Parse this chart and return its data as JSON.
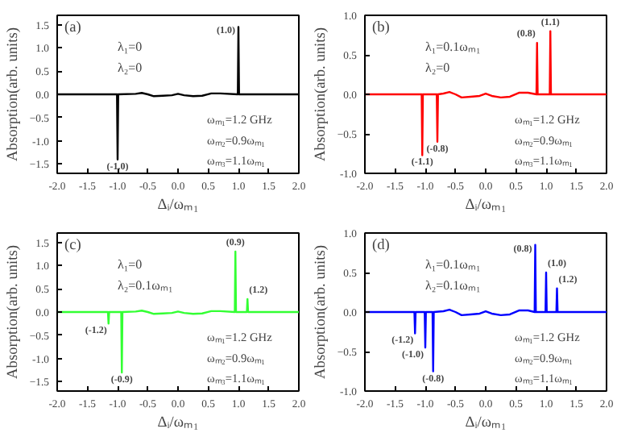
{
  "chart_data": [
    {
      "type": "line",
      "title": "(a)",
      "xlabel": "Δᵢ/ωₘ₁",
      "ylabel": "Absorption(arb. units)",
      "xlim": [
        -2,
        2
      ],
      "ylim": [
        -1.7,
        1.7
      ],
      "xticks": [
        {
          "value": -2,
          "label": "-2.0"
        },
        {
          "value": -1.5,
          "label": "-1.5"
        },
        {
          "value": -1,
          "label": "-1.0"
        },
        {
          "value": -0.5,
          "label": "-0.5"
        },
        {
          "value": 0,
          "label": "0.0"
        },
        {
          "value": 0.5,
          "label": "0.5"
        },
        {
          "value": 1,
          "label": "1.0"
        },
        {
          "value": 1.5,
          "label": "1.5"
        },
        {
          "value": 2,
          "label": "2.0"
        }
      ],
      "yticks": [
        -1.5,
        {
          "value": -1,
          "label": "-1.0"
        },
        -0.5,
        {
          "value": 0,
          "label": "0.0"
        },
        0.5,
        {
          "value": 1,
          "label": "1.0"
        },
        1.5
      ],
      "series": [
        {
          "color": "#000000",
          "x": [
            -2,
            -1.01,
            -1.0,
            -0.99,
            -0.7,
            -0.6,
            -0.5,
            -0.4,
            -0.25,
            -0.1,
            0,
            0.1,
            0.25,
            0.4,
            0.55,
            0.7,
            0.99,
            1.0,
            1.01,
            2
          ],
          "values": [
            0,
            0,
            -1.4,
            0,
            0.01,
            0.03,
            0,
            -0.04,
            -0.03,
            -0.02,
            0.01,
            -0.02,
            -0.04,
            -0.03,
            0.02,
            0.02,
            0,
            1.45,
            0,
            0
          ]
        }
      ],
      "annotations": [
        "λ₁=0",
        "λ₂=0",
        "ωₘ₁=1.2 GHz",
        "ωₘ₂=0.9ωₘ₁",
        "ωₘ₃=1.1ωₘ₁",
        {
          "text": "(1.0)",
          "x": 1.0,
          "y": 1.45
        },
        {
          "text": "(-1.0)",
          "x": -1.0,
          "y": -1.4
        }
      ]
    },
    {
      "type": "line",
      "title": "(b)",
      "xlabel": "Δᵢ/ωₘ₁",
      "ylabel": "Absorption(arb. units)",
      "xlim": [
        -2,
        2
      ],
      "ylim": [
        -1,
        1
      ],
      "xticks": [
        {
          "value": -2,
          "label": "-2.0"
        },
        {
          "value": -1.5,
          "label": "-1.5"
        },
        {
          "value": -1,
          "label": "-1.0"
        },
        {
          "value": -0.5,
          "label": "-0.5"
        },
        {
          "value": 0,
          "label": "0.0"
        },
        {
          "value": 0.5,
          "label": "0.5"
        },
        {
          "value": 1,
          "label": "1.0"
        },
        {
          "value": 1.5,
          "label": "1.5"
        },
        {
          "value": 2,
          "label": "2.0"
        }
      ],
      "yticks": [
        {
          "value": -1,
          "label": "-1.0"
        },
        -0.5,
        {
          "value": 0,
          "label": "0.0"
        },
        0.5,
        {
          "value": 1,
          "label": "1.0"
        }
      ],
      "series": [
        {
          "color": "#ff0000",
          "x": [
            -2,
            -1.06,
            -1.05,
            -1.04,
            -0.81,
            -0.8,
            -0.79,
            -0.7,
            -0.6,
            -0.5,
            -0.4,
            -0.25,
            -0.1,
            0,
            0.1,
            0.25,
            0.4,
            0.55,
            0.7,
            0.84,
            0.85,
            0.86,
            1.06,
            1.07,
            1.08,
            2
          ],
          "values": [
            0,
            0,
            -0.77,
            0,
            0,
            -0.6,
            0,
            0.01,
            0.03,
            0,
            -0.04,
            -0.03,
            -0.02,
            0.01,
            -0.02,
            -0.04,
            -0.03,
            0.02,
            0.02,
            0,
            0.65,
            0,
            0,
            0.8,
            0,
            0
          ]
        }
      ],
      "annotations": [
        "λ₁=0.1ωₘ₁",
        "λ₂=0",
        "ωₘ₁=1.2 GHz",
        "ωₘ₂=0.9ωₘ₁",
        "ωₘ₃=1.1ωₘ₁",
        {
          "text": "(0.8)",
          "x": 0.85,
          "y": 0.65
        },
        {
          "text": "(1.1)",
          "x": 1.07,
          "y": 0.8
        },
        {
          "text": "(-1.1)",
          "x": -1.05,
          "y": -0.77
        },
        {
          "text": "(-0.8)",
          "x": -0.8,
          "y": -0.6
        }
      ]
    },
    {
      "type": "line",
      "title": "(c)",
      "xlabel": "Δᵢ/ωₘ₁",
      "ylabel": "Absorption(arb. units)",
      "xlim": [
        -2,
        2
      ],
      "ylim": [
        -1.7,
        1.7
      ],
      "xticks": [
        {
          "value": -2,
          "label": "-2.0"
        },
        {
          "value": -1.5,
          "label": "-1.5"
        },
        {
          "value": -1,
          "label": "-1.0"
        },
        {
          "value": -0.5,
          "label": "-0.5"
        },
        {
          "value": 0,
          "label": "0.0"
        },
        {
          "value": 0.5,
          "label": "0.5"
        },
        {
          "value": 1,
          "label": "1.0"
        },
        {
          "value": 1.5,
          "label": "1.5"
        },
        {
          "value": 2,
          "label": "2.0"
        }
      ],
      "yticks": [
        -1.5,
        {
          "value": -1,
          "label": "-1.0"
        },
        -0.5,
        {
          "value": 0,
          "label": "0.0"
        },
        0.5,
        {
          "value": 1,
          "label": "1.0"
        },
        1.5
      ],
      "series": [
        {
          "color": "#33ff33",
          "x": [
            -2,
            -1.16,
            -1.15,
            -1.14,
            -0.94,
            -0.93,
            -0.92,
            -0.7,
            -0.6,
            -0.5,
            -0.4,
            -0.25,
            -0.1,
            0,
            0.1,
            0.25,
            0.4,
            0.55,
            0.7,
            0.94,
            0.95,
            0.96,
            1.14,
            1.15,
            1.16,
            2
          ],
          "values": [
            0,
            0,
            -0.25,
            0,
            0,
            -1.3,
            0,
            0.01,
            0.03,
            0,
            -0.04,
            -0.03,
            -0.02,
            0.01,
            -0.02,
            -0.04,
            -0.03,
            0.02,
            0.02,
            0,
            1.3,
            0,
            0,
            0.28,
            0,
            0
          ]
        }
      ],
      "annotations": [
        "λ₁=0",
        "λ₂=0.1ωₘ₁",
        "ωₘ₁=1.2 GHz",
        "ωₘ₂=0.9ωₘ₁",
        "ωₘ₃=1.1ωₘ₁",
        {
          "text": "(0.9)",
          "x": 0.95,
          "y": 1.3
        },
        {
          "text": "(1.2)",
          "x": 1.15,
          "y": 0.28
        },
        {
          "text": "(-1.2)",
          "x": -1.15,
          "y": -0.25
        },
        {
          "text": "(-0.9)",
          "x": -0.93,
          "y": -1.3
        }
      ]
    },
    {
      "type": "line",
      "title": "(d)",
      "xlabel": "Δᵢ/ωₘ₁",
      "ylabel": "Absorption(arb. units)",
      "xlim": [
        -2,
        2
      ],
      "ylim": [
        -1,
        1
      ],
      "xticks": [
        {
          "value": -2,
          "label": "-2.0"
        },
        {
          "value": -1.5,
          "label": "-1.5"
        },
        {
          "value": -1,
          "label": "-1.0"
        },
        {
          "value": -0.5,
          "label": "-0.5"
        },
        {
          "value": 0,
          "label": "0.0"
        },
        {
          "value": 0.5,
          "label": "0.5"
        },
        {
          "value": 1,
          "label": "1.0"
        },
        {
          "value": 1.5,
          "label": "1.5"
        },
        {
          "value": 2,
          "label": "2.0"
        }
      ],
      "yticks": [
        {
          "value": -1,
          "label": "-1.0"
        },
        -0.5,
        {
          "value": 0,
          "label": "0.0"
        },
        0.5,
        {
          "value": 1,
          "label": "1.0"
        }
      ],
      "series": [
        {
          "color": "#0000ff",
          "x": [
            -2,
            -1.18,
            -1.17,
            -1.16,
            -1.01,
            -1.0,
            -0.99,
            -0.88,
            -0.87,
            -0.86,
            -0.7,
            -0.6,
            -0.5,
            -0.4,
            -0.25,
            -0.1,
            0,
            0.1,
            0.25,
            0.4,
            0.55,
            0.7,
            0.81,
            0.82,
            0.83,
            0.99,
            1.0,
            1.01,
            1.17,
            1.18,
            1.19,
            2
          ],
          "values": [
            0,
            0,
            -0.27,
            0,
            0,
            -0.45,
            0,
            0,
            -0.75,
            0,
            0.01,
            0.03,
            0,
            -0.04,
            -0.03,
            -0.02,
            0.01,
            -0.02,
            -0.04,
            -0.03,
            0.02,
            0.02,
            0,
            0.85,
            0,
            0,
            0.5,
            0,
            0,
            0.3,
            0,
            0
          ]
        }
      ],
      "annotations": [
        "λ₁=0.1ωₘ₁",
        "λ₂=0.1ωₘ₁",
        "ωₘ₁=1.2 GHz",
        "ωₘ₂=0.9ωₘ₁",
        "ωₘ₃=1.1ωₘ₁",
        {
          "text": "(0.8)",
          "x": 0.82,
          "y": 0.85
        },
        {
          "text": "(1.0)",
          "x": 1.0,
          "y": 0.5
        },
        {
          "text": "(1.2)",
          "x": 1.18,
          "y": 0.3
        },
        {
          "text": "(-1.2)",
          "x": -1.17,
          "y": -0.27
        },
        {
          "text": "(-1.0)",
          "x": -1.0,
          "y": -0.45
        },
        {
          "text": "(-0.8)",
          "x": -0.87,
          "y": -0.75
        }
      ]
    }
  ]
}
